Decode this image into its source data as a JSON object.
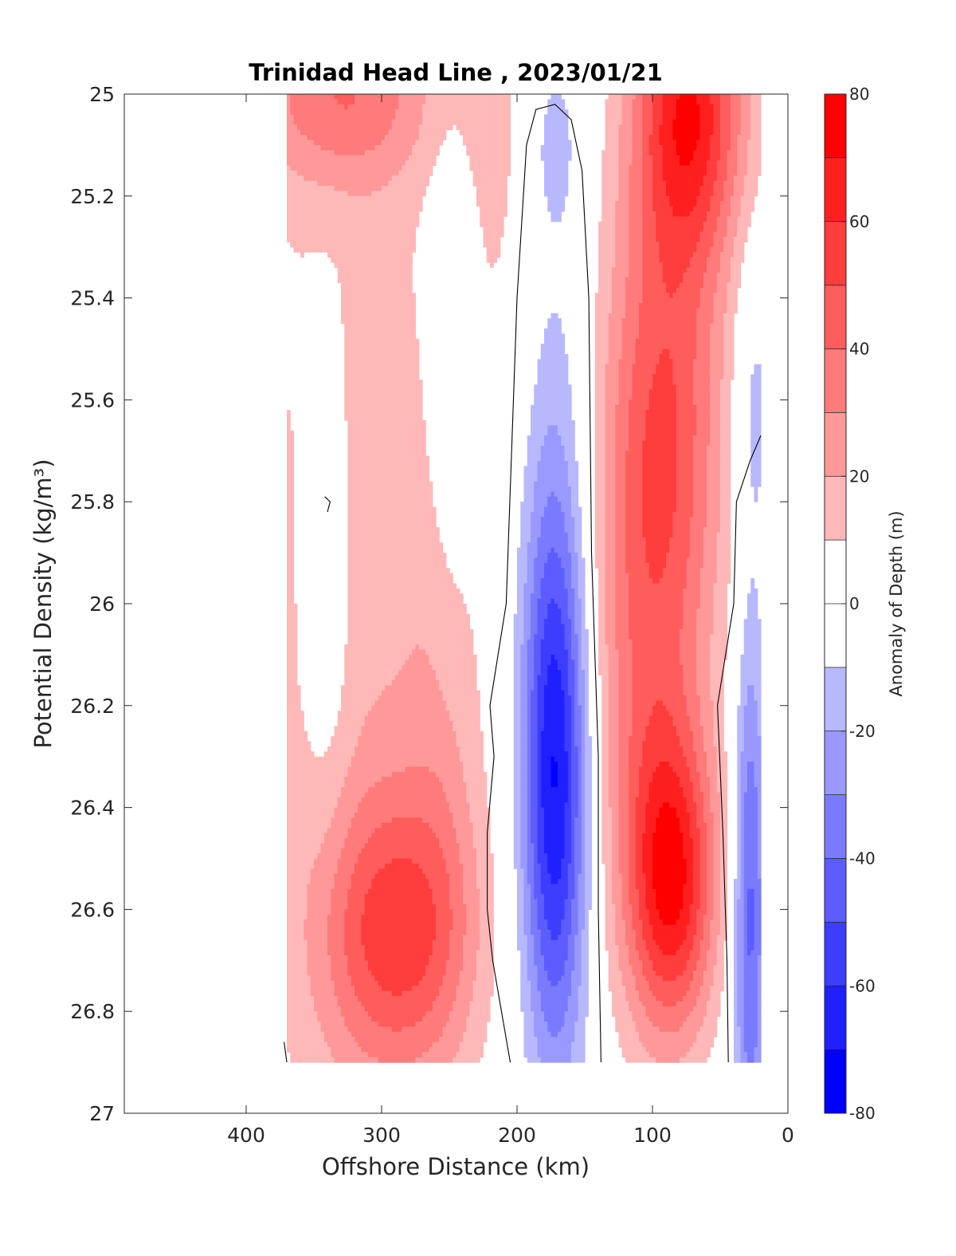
{
  "chart_data": {
    "type": "heatmap",
    "subtype": "filled-contour",
    "title": "Trinidad Head Line , 2023/01/21",
    "xlabel": "Offshore Distance (km)",
    "ylabel": "Potential Density (kg/m³)",
    "colorbar_label": "Anomaly of Depth (m)",
    "xlim": [
      490,
      0
    ],
    "x_reversed": true,
    "ylim": [
      25,
      27
    ],
    "y_reversed": true,
    "x_ticks": [
      "400",
      "300",
      "200",
      "100",
      "0"
    ],
    "y_ticks": [
      "25",
      "25.2",
      "25.4",
      "25.6",
      "25.8",
      "26",
      "26.2",
      "26.4",
      "26.6",
      "26.8",
      "27"
    ],
    "colorbar_ticks": [
      "80",
      "60",
      "40",
      "20",
      "0",
      "-20",
      "-40",
      "-60",
      "-80"
    ],
    "colorbar_range": [
      -80,
      80
    ],
    "contour_levels": [
      -80,
      -70,
      -60,
      -50,
      -40,
      -30,
      -20,
      -10,
      10,
      20,
      30,
      40,
      50,
      60,
      70,
      80
    ],
    "zero_contour_line": true,
    "data_extent": {
      "x": [
        20,
        370
      ],
      "y": [
        25,
        26.9
      ]
    },
    "colors": {
      "neg_extreme": "#0000ff",
      "neutral": "#ffffff",
      "pos_extreme": "#ff0000",
      "contour_line": "#000000"
    },
    "features": [
      {
        "type": "min",
        "x": 172,
        "y": 26.35,
        "value": -65
      },
      {
        "type": "max",
        "x": 85,
        "y": 26.53,
        "value": 65
      },
      {
        "type": "max",
        "x": 75,
        "y": 25.05,
        "value": 62
      },
      {
        "type": "max",
        "x": 280,
        "y": 26.6,
        "value": 45
      },
      {
        "type": "min",
        "x": 28,
        "y": 26.65,
        "value": -42
      }
    ]
  }
}
